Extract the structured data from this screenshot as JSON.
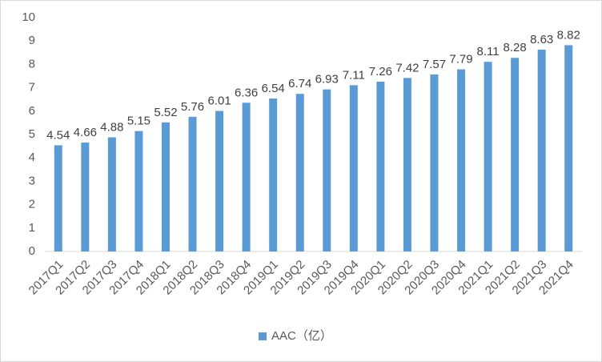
{
  "chart_data": {
    "type": "bar",
    "categories": [
      "2017Q1",
      "2017Q2",
      "2017Q3",
      "2017Q4",
      "2018Q1",
      "2018Q2",
      "2018Q3",
      "2018Q4",
      "2019Q1",
      "2019Q2",
      "2019Q3",
      "2019Q4",
      "2020Q1",
      "2020Q2",
      "2020Q3",
      "2020Q4",
      "2021Q1",
      "2021Q2",
      "2021Q3",
      "2021Q4"
    ],
    "series": [
      {
        "name": "AAC（亿）",
        "color": "#5b9bd5",
        "values": [
          4.54,
          4.66,
          4.88,
          5.15,
          5.52,
          5.76,
          6.01,
          6.36,
          6.54,
          6.74,
          6.93,
          7.11,
          7.26,
          7.42,
          7.57,
          7.79,
          8.11,
          8.28,
          8.63,
          8.82
        ]
      }
    ],
    "ylim": [
      0,
      10
    ],
    "yticks": [
      0,
      1,
      2,
      3,
      4,
      5,
      6,
      7,
      8,
      9,
      10
    ],
    "grid": false,
    "legend": "bottom"
  }
}
